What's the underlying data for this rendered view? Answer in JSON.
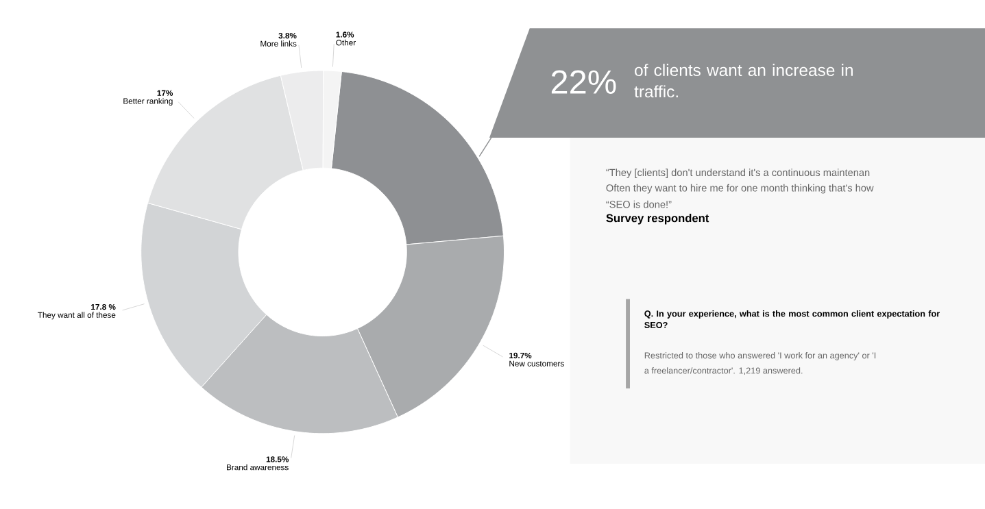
{
  "chart_data": {
    "type": "donut",
    "categories": [
      null,
      "New customers",
      "Brand awareness",
      "They want all of these",
      "Better ranking",
      "More links",
      "Other"
    ],
    "values": [
      22,
      19.7,
      18.5,
      17.8,
      17,
      3.8,
      1.6
    ],
    "value_labels": [
      null,
      "19.7%",
      "18.5%",
      "17.8 %",
      "17%",
      "3.8%",
      "1.6%"
    ],
    "colors": [
      "#8e9093",
      "#a9abad",
      "#bcbec0",
      "#d2d4d6",
      "#e0e1e2",
      "#ececed",
      "#f4f4f4"
    ],
    "annotations": [
      "“They [clients] don't understand it's a continuous maintenan",
      "Often they want to hire me for one month thinking that's how",
      "“SEO is done!”",
      "Survey respondent",
      "Q. In your experience, what is the most common client expectation for SEO?",
      "Restricted to those who answered 'I work for an agency' or 'I",
      "a freelancer/contractor'. 1,219 answered.",
      "22%",
      "of clients want an increase in traffic."
    ]
  }
}
